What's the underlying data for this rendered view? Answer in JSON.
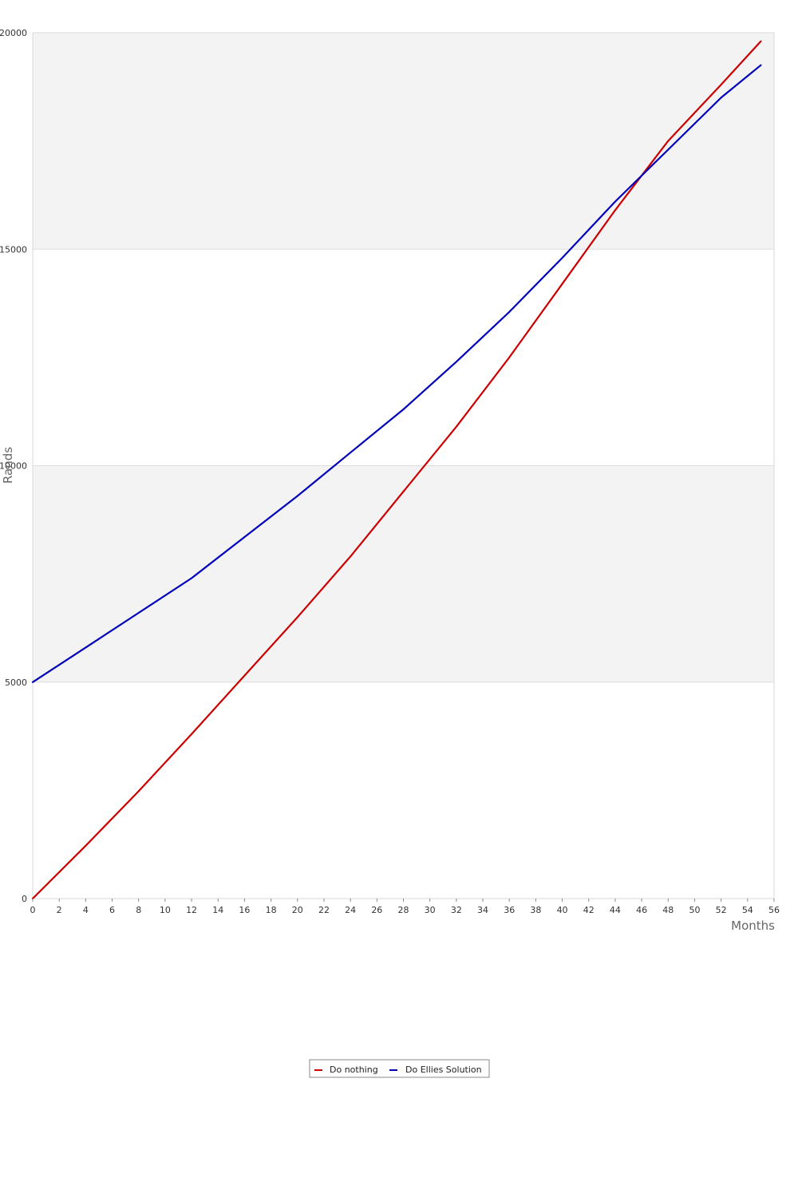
{
  "chart_data": {
    "type": "line",
    "title": "",
    "xlabel": "Months",
    "ylabel": "Rands",
    "xlim": [
      0,
      56
    ],
    "ylim": [
      0,
      20000
    ],
    "x_ticks": [
      "0",
      "2",
      "4",
      "6",
      "8",
      "10",
      "12",
      "14",
      "16",
      "18",
      "20",
      "22",
      "24",
      "26",
      "28",
      "30",
      "32",
      "34",
      "36",
      "38",
      "40",
      "42",
      "44",
      "46",
      "48",
      "50",
      "52",
      "54",
      "56"
    ],
    "y_ticks": [
      "0",
      "5000",
      "10000",
      "15000",
      "20000"
    ],
    "grid": "horizontal bands",
    "legend_position": "bottom-center",
    "series": [
      {
        "name": "Do nothing",
        "color": "#cc0000",
        "x": [
          0,
          4,
          8,
          12,
          16,
          20,
          24,
          28,
          32,
          36,
          40,
          44,
          48,
          52,
          55
        ],
        "y": [
          0,
          1220,
          2480,
          3800,
          5150,
          6500,
          7900,
          9400,
          10900,
          12500,
          14200,
          15900,
          17500,
          18800,
          19800
        ]
      },
      {
        "name": "Do Ellies Solution",
        "color": "#0000bb",
        "x": [
          0,
          4,
          8,
          12,
          16,
          20,
          24,
          28,
          32,
          36,
          40,
          44,
          48,
          52,
          55
        ],
        "y": [
          5000,
          5800,
          6600,
          7400,
          8350,
          9300,
          10300,
          11300,
          12400,
          13550,
          14800,
          16100,
          17300,
          18500,
          19250
        ]
      }
    ]
  }
}
